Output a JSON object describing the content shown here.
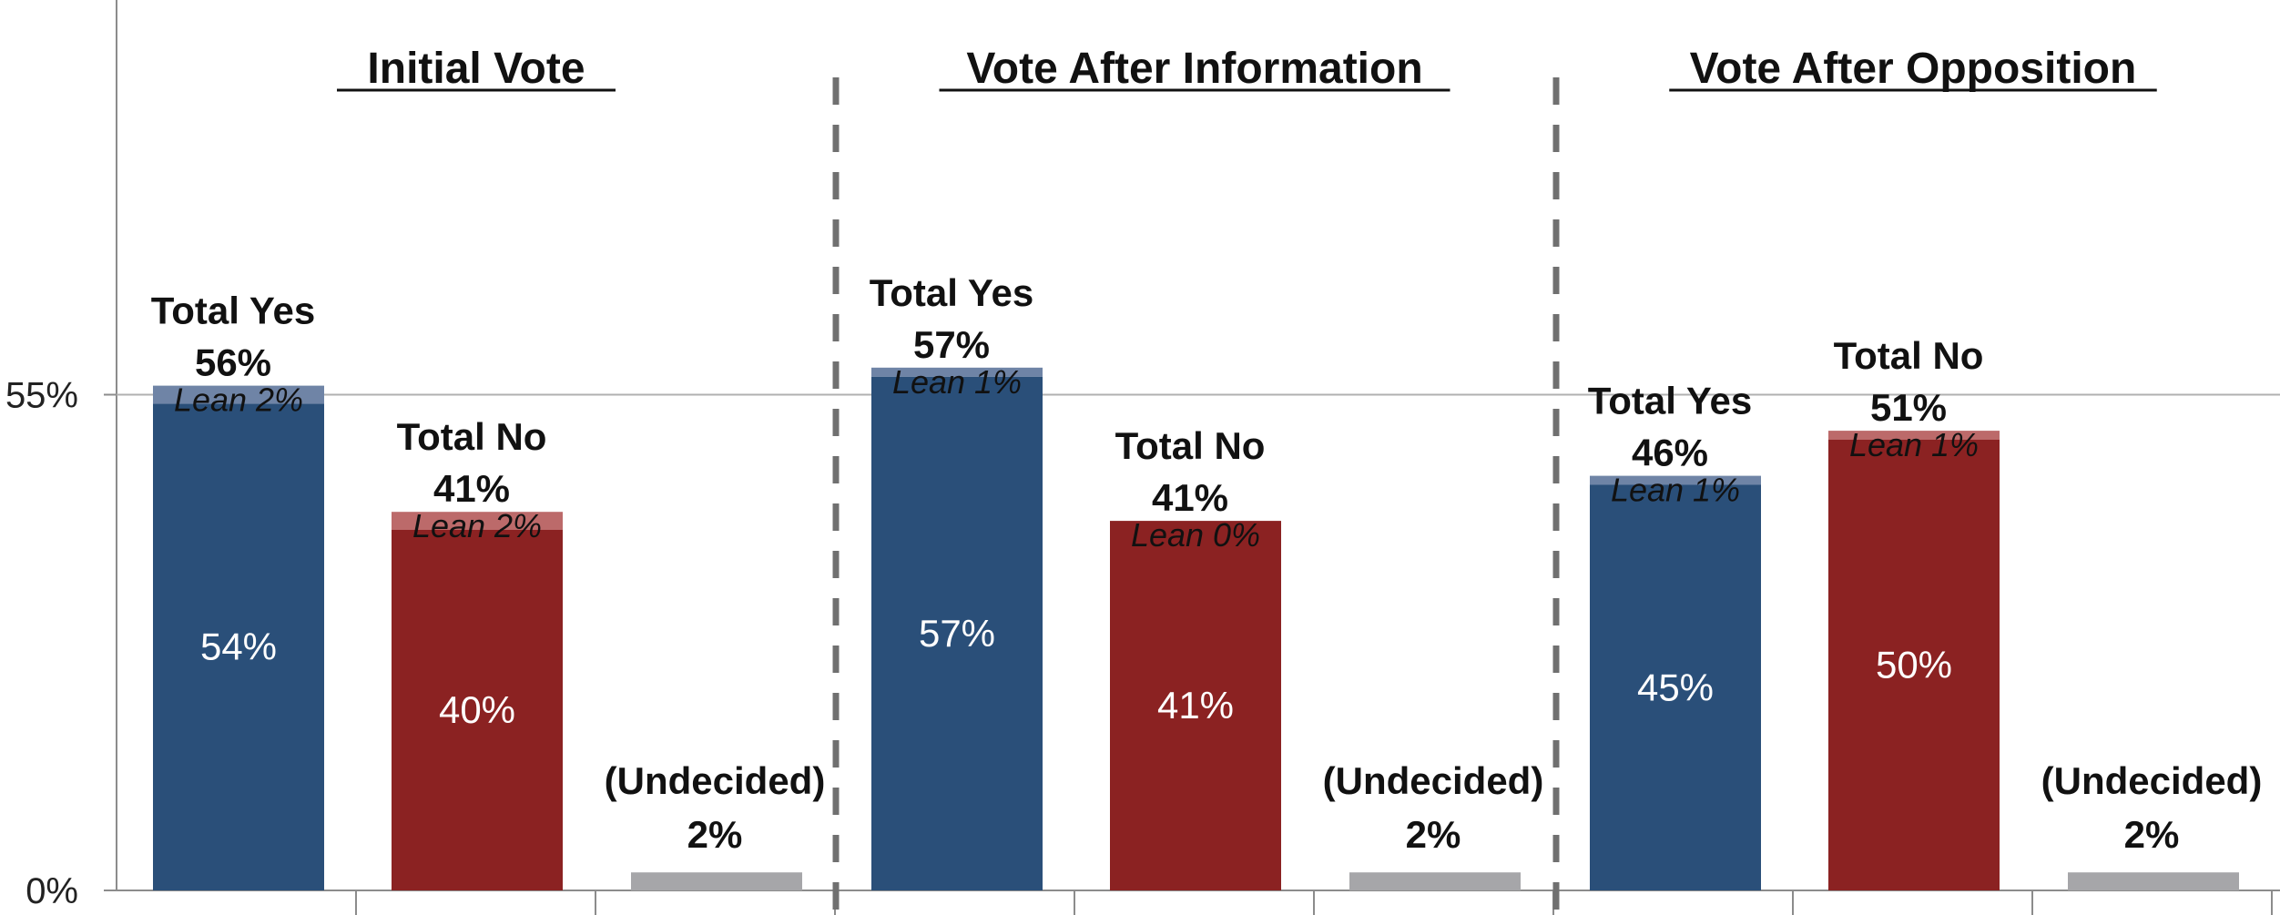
{
  "chart_data": {
    "type": "bar",
    "subtype": "stacked",
    "y_axis": {
      "ylim": [
        0,
        100
      ],
      "ticks": [
        {
          "value": 0,
          "label": "0%"
        },
        {
          "value": 55,
          "label": "55%"
        }
      ]
    },
    "grid": "horizontal line at 55%",
    "groups": [
      {
        "title": "Initial Vote",
        "bars": [
          {
            "kind": "yes",
            "total_label": "Total Yes",
            "total_value": "56%",
            "base": 54,
            "base_label": "54%",
            "lean": 2,
            "lean_label": "Lean 2%"
          },
          {
            "kind": "no",
            "total_label": "Total No",
            "total_value": "41%",
            "base": 40,
            "base_label": "40%",
            "lean": 2,
            "lean_label": "Lean 2%"
          },
          {
            "kind": "undecided",
            "total_label": "(Undecided)",
            "total_value": "2%",
            "base": 2
          }
        ]
      },
      {
        "title": "Vote After Information",
        "bars": [
          {
            "kind": "yes",
            "total_label": "Total Yes",
            "total_value": "57%",
            "base": 57,
            "base_label": "57%",
            "lean": 1,
            "lean_label": "Lean 1%"
          },
          {
            "kind": "no",
            "total_label": "Total No",
            "total_value": "41%",
            "base": 41,
            "base_label": "41%",
            "lean": 0,
            "lean_label": "Lean 0%"
          },
          {
            "kind": "undecided",
            "total_label": "(Undecided)",
            "total_value": "2%",
            "base": 2
          }
        ]
      },
      {
        "title": "Vote After Opposition",
        "bars": [
          {
            "kind": "yes",
            "total_label": "Total Yes",
            "total_value": "46%",
            "base": 45,
            "base_label": "45%",
            "lean": 1,
            "lean_label": "Lean 1%"
          },
          {
            "kind": "no",
            "total_label": "Total No",
            "total_value": "51%",
            "base": 50,
            "base_label": "50%",
            "lean": 1,
            "lean_label": "Lean 1%"
          },
          {
            "kind": "undecided",
            "total_label": "(Undecided)",
            "total_value": "2%",
            "base": 2
          }
        ]
      }
    ],
    "colors": {
      "yes_base": "#2a4f79",
      "yes_lean": "#6f84a6",
      "no_base": "#8b2222",
      "no_lean": "#bc6a6a",
      "undecided": "#a6a6a9",
      "axis": "#8c8c8c",
      "divider": "#707070"
    }
  }
}
